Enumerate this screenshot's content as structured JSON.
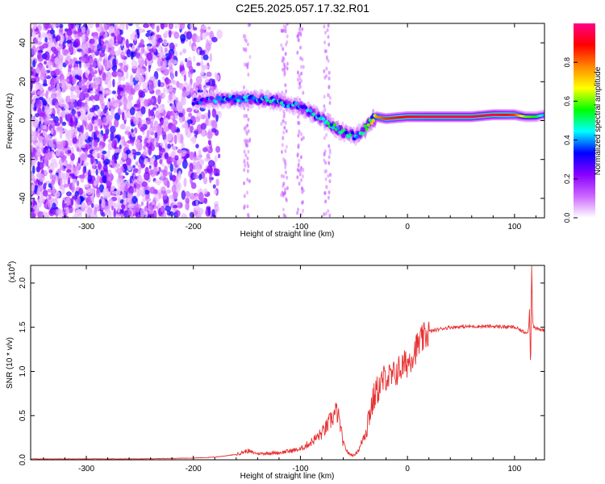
{
  "title": "C2E5.2025.057.17.32.R01",
  "chart_data": [
    {
      "type": "heatmap",
      "xlabel": "Height of straight line (km)",
      "ylabel": "Frequency (Hz)",
      "xlim": [
        -352,
        128
      ],
      "ylim": [
        -50,
        50
      ],
      "xticks": [
        -300,
        -200,
        -100,
        0,
        100
      ],
      "yticks": [
        -40,
        -20,
        0,
        20,
        40
      ],
      "colorbar": {
        "label": "Normalized spectral amplitude",
        "range": [
          0.0,
          1.0
        ],
        "ticks": [
          "0.0",
          "0.2",
          "0.4",
          "0.6",
          "0.8"
        ],
        "colors": [
          "#ffffff",
          "#cc66ff",
          "#8800ff",
          "#0000ff",
          "#00ffff",
          "#00ff00",
          "#ffff00",
          "#ff8800",
          "#ff0000",
          "#ff0088"
        ]
      },
      "ridge": {
        "x": [
          -200,
          -180,
          -160,
          -140,
          -120,
          -100,
          -90,
          -80,
          -70,
          -60,
          -50,
          -42,
          -35,
          -30,
          -20,
          0,
          20,
          40,
          60,
          80,
          100,
          110,
          120,
          128
        ],
        "y": [
          10,
          11,
          11,
          11,
          10,
          7,
          4,
          1,
          -3,
          -6,
          -8,
          -6,
          -1,
          2,
          1,
          2,
          2,
          2,
          2,
          3,
          3,
          2,
          2,
          3
        ],
        "amplitude": [
          0.3,
          0.35,
          0.4,
          0.4,
          0.4,
          0.35,
          0.4,
          0.4,
          0.45,
          0.45,
          0.4,
          0.45,
          0.55,
          0.75,
          0.85,
          0.9,
          0.95,
          0.95,
          0.95,
          0.95,
          0.85,
          0.6,
          0.55,
          0.4
        ]
      },
      "noise_region_x": [
        -352,
        -185
      ]
    },
    {
      "type": "line",
      "xlabel": "Height of straight line (km)",
      "ylabel": "SNR (10 * v/v)",
      "yscale_label": "(x10",
      "yscale_exp": "4",
      "xlim": [
        -352,
        128
      ],
      "ylim": [
        0.0,
        2.2
      ],
      "xticks": [
        -300,
        -200,
        -100,
        0,
        100
      ],
      "yticks": [
        "0.0",
        "0.5",
        "1.0",
        "1.5",
        "2.0"
      ],
      "color": "#e83030",
      "series": [
        {
          "x": [
            -352,
            -250,
            -200,
            -180,
            -160,
            -150,
            -140,
            -120,
            -100,
            -90,
            -80,
            -75,
            -70,
            -66,
            -63,
            -60,
            -55,
            -50,
            -45,
            -40,
            -35,
            -30,
            -25,
            -20,
            -15,
            -10,
            -5,
            0,
            5,
            10,
            20,
            30,
            40,
            60,
            80,
            100,
            105,
            110,
            113,
            114,
            115,
            116,
            117,
            118,
            120,
            125,
            128
          ],
          "y": [
            0.01,
            0.01,
            0.02,
            0.03,
            0.06,
            0.1,
            0.07,
            0.08,
            0.12,
            0.2,
            0.3,
            0.38,
            0.48,
            0.55,
            0.4,
            0.18,
            0.07,
            0.05,
            0.12,
            0.3,
            0.55,
            0.75,
            0.85,
            0.95,
            0.92,
            1.0,
            1.05,
            1.1,
            1.2,
            1.3,
            1.45,
            1.48,
            1.5,
            1.51,
            1.51,
            1.5,
            1.47,
            1.44,
            1.46,
            1.7,
            0.98,
            2.2,
            1.55,
            1.5,
            1.48,
            1.47,
            1.47
          ]
        }
      ]
    }
  ]
}
